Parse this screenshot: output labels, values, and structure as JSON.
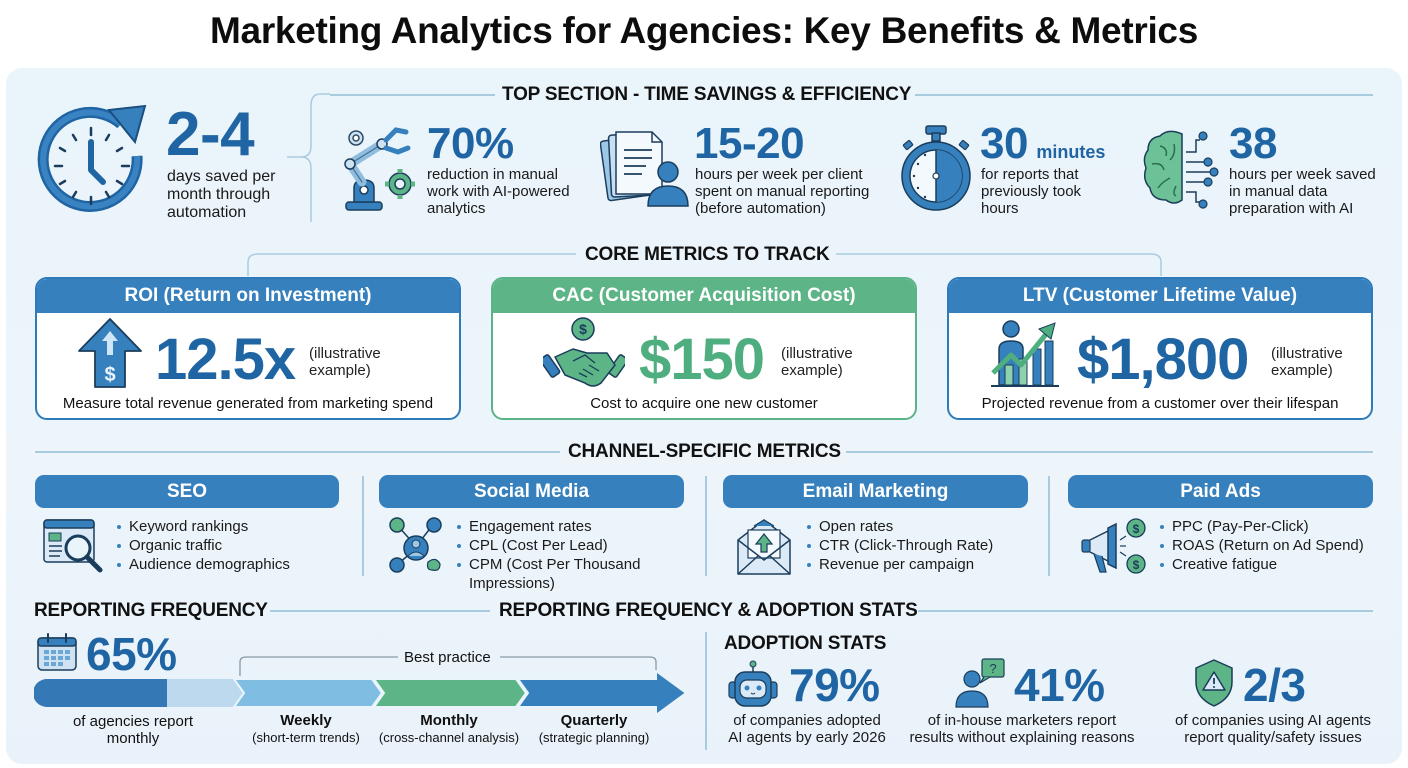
{
  "title": "Marketing Analytics for Agencies: Key Benefits & Metrics",
  "colors": {
    "primary_blue": "#1f64a3",
    "header_blue": "#3680bd",
    "accent_green": "#5cb487",
    "light_blue": "#7fbde2",
    "panel_bg": "#eaf4fb"
  },
  "top_section": {
    "heading": "TOP SECTION - TIME SAVINGS & EFFICIENCY",
    "hero": {
      "icon": "clock-refresh-icon",
      "value": "2-4",
      "description": [
        "days saved per",
        "month through",
        "automation"
      ]
    },
    "stats": [
      {
        "icon": "robot-arm-gears-icon",
        "value": "70%",
        "unit": "",
        "description": [
          "reduction in manual",
          "work with AI-powered",
          "analytics"
        ]
      },
      {
        "icon": "documents-person-icon",
        "value": "15-20",
        "unit": "",
        "description": [
          "hours per week per client",
          "spent on manual reporting",
          "(before automation)"
        ]
      },
      {
        "icon": "stopwatch-icon",
        "value": "30",
        "unit": "minutes",
        "description": [
          "for reports that",
          "previously took",
          "hours"
        ]
      },
      {
        "icon": "brain-circuit-icon",
        "value": "38",
        "unit": "",
        "description": [
          "hours per week saved",
          "in manual data",
          "preparation with AI"
        ]
      }
    ]
  },
  "core_metrics": {
    "heading": "CORE METRICS TO TRACK",
    "cards": [
      {
        "title": "ROI (Return on Investment)",
        "icon": "arrow-up-dollar-icon",
        "value": "12.5x",
        "note": [
          "(illustrative",
          "example)"
        ],
        "description": "Measure total revenue generated from marketing spend"
      },
      {
        "title": "CAC (Customer Acquisition Cost)",
        "icon": "handshake-coin-icon",
        "value": "$150",
        "note": [
          "(illustrative",
          "example)"
        ],
        "description": "Cost to acquire one new customer"
      },
      {
        "title": "LTV (Customer Lifetime Value)",
        "icon": "person-growth-chart-icon",
        "value": "$1,800",
        "note": [
          "(illustrative",
          "example)"
        ],
        "description": "Projected revenue from a customer over their lifespan"
      }
    ]
  },
  "channel_metrics": {
    "heading": "CHANNEL-SPECIFIC METRICS",
    "channels": [
      {
        "name": "SEO",
        "icon": "browser-magnifier-icon",
        "items": [
          "Keyword rankings",
          "Organic traffic",
          "Audience demographics"
        ]
      },
      {
        "name": "Social Media",
        "icon": "social-network-icon",
        "items": [
          "Engagement rates",
          "CPL (Cost Per Lead)",
          "CPM (Cost Per Thousand",
          "Impressions)"
        ]
      },
      {
        "name": "Email Marketing",
        "icon": "envelope-upload-icon",
        "items": [
          "Open rates",
          "CTR (Click-Through Rate)",
          "Revenue per campaign"
        ]
      },
      {
        "name": "Paid Ads",
        "icon": "megaphone-dollar-icon",
        "items": [
          "PPC (Pay-Per-Click)",
          "ROAS (Return on Ad Spend)",
          "Creative fatigue"
        ]
      }
    ]
  },
  "bottom": {
    "heading_left": "REPORTING FREQUENCY",
    "heading_center": "REPORTING FREQUENCY & ADOPTION STATS",
    "reporting": {
      "icon": "calendar-icon",
      "value": "65%",
      "progress_pct": 65,
      "description": [
        "of agencies report",
        "monthly"
      ],
      "best_practice_label": "Best practice",
      "stages": [
        {
          "name": "Weekly",
          "detail": "(short-term trends)",
          "color": "#7fbde2"
        },
        {
          "name": "Monthly",
          "detail": "(cross-channel analysis)",
          "color": "#5cb487"
        },
        {
          "name": "Quarterly",
          "detail": "(strategic planning)",
          "color": "#3680bd"
        }
      ]
    },
    "adoption": {
      "heading": "ADOPTION STATS",
      "stats": [
        {
          "icon": "robot-head-icon",
          "value": "79%",
          "description": [
            "of companies adopted",
            "AI agents by early 2026"
          ]
        },
        {
          "icon": "person-question-icon",
          "value": "41%",
          "description": [
            "of in-house marketers report",
            "results without explaining reasons"
          ]
        },
        {
          "icon": "shield-warning-icon",
          "value": "2/3",
          "description": [
            "of companies using AI agents",
            "report quality/safety issues"
          ]
        }
      ]
    }
  }
}
